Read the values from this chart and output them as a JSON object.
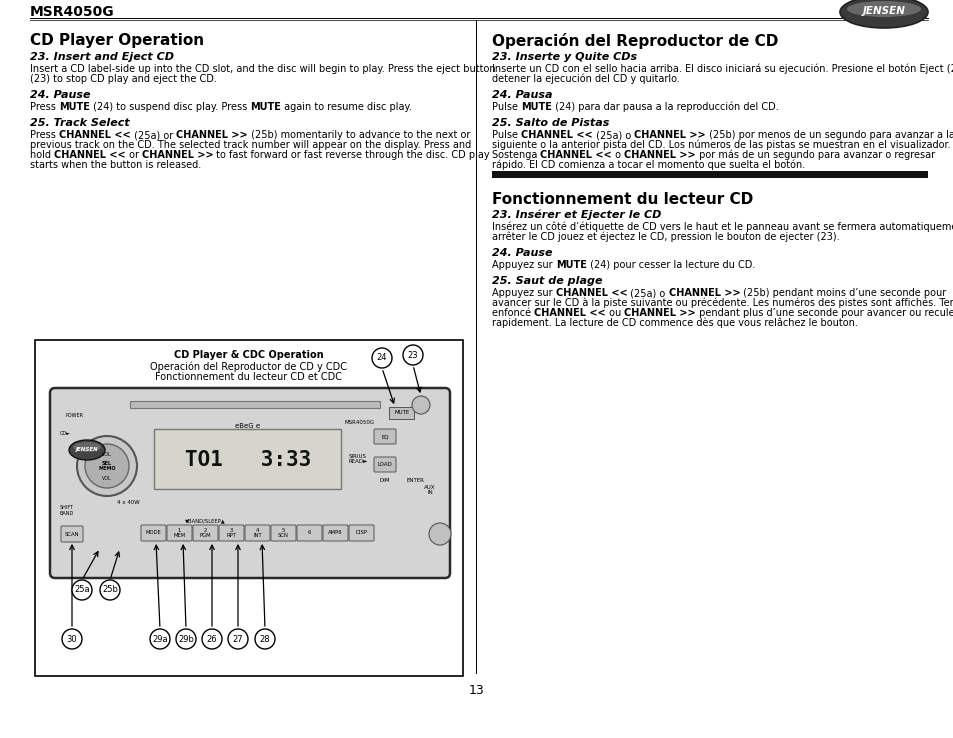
{
  "bg_color": "#ffffff",
  "page_number": "13",
  "model": "MSR4050G",
  "diagram_title_line1": "CD Player & CDC Operation",
  "diagram_title_line2": "Operación del Reproductor de CD y CDC",
  "diagram_title_line3": "Fonctionnement du lecteur CD et CDC"
}
